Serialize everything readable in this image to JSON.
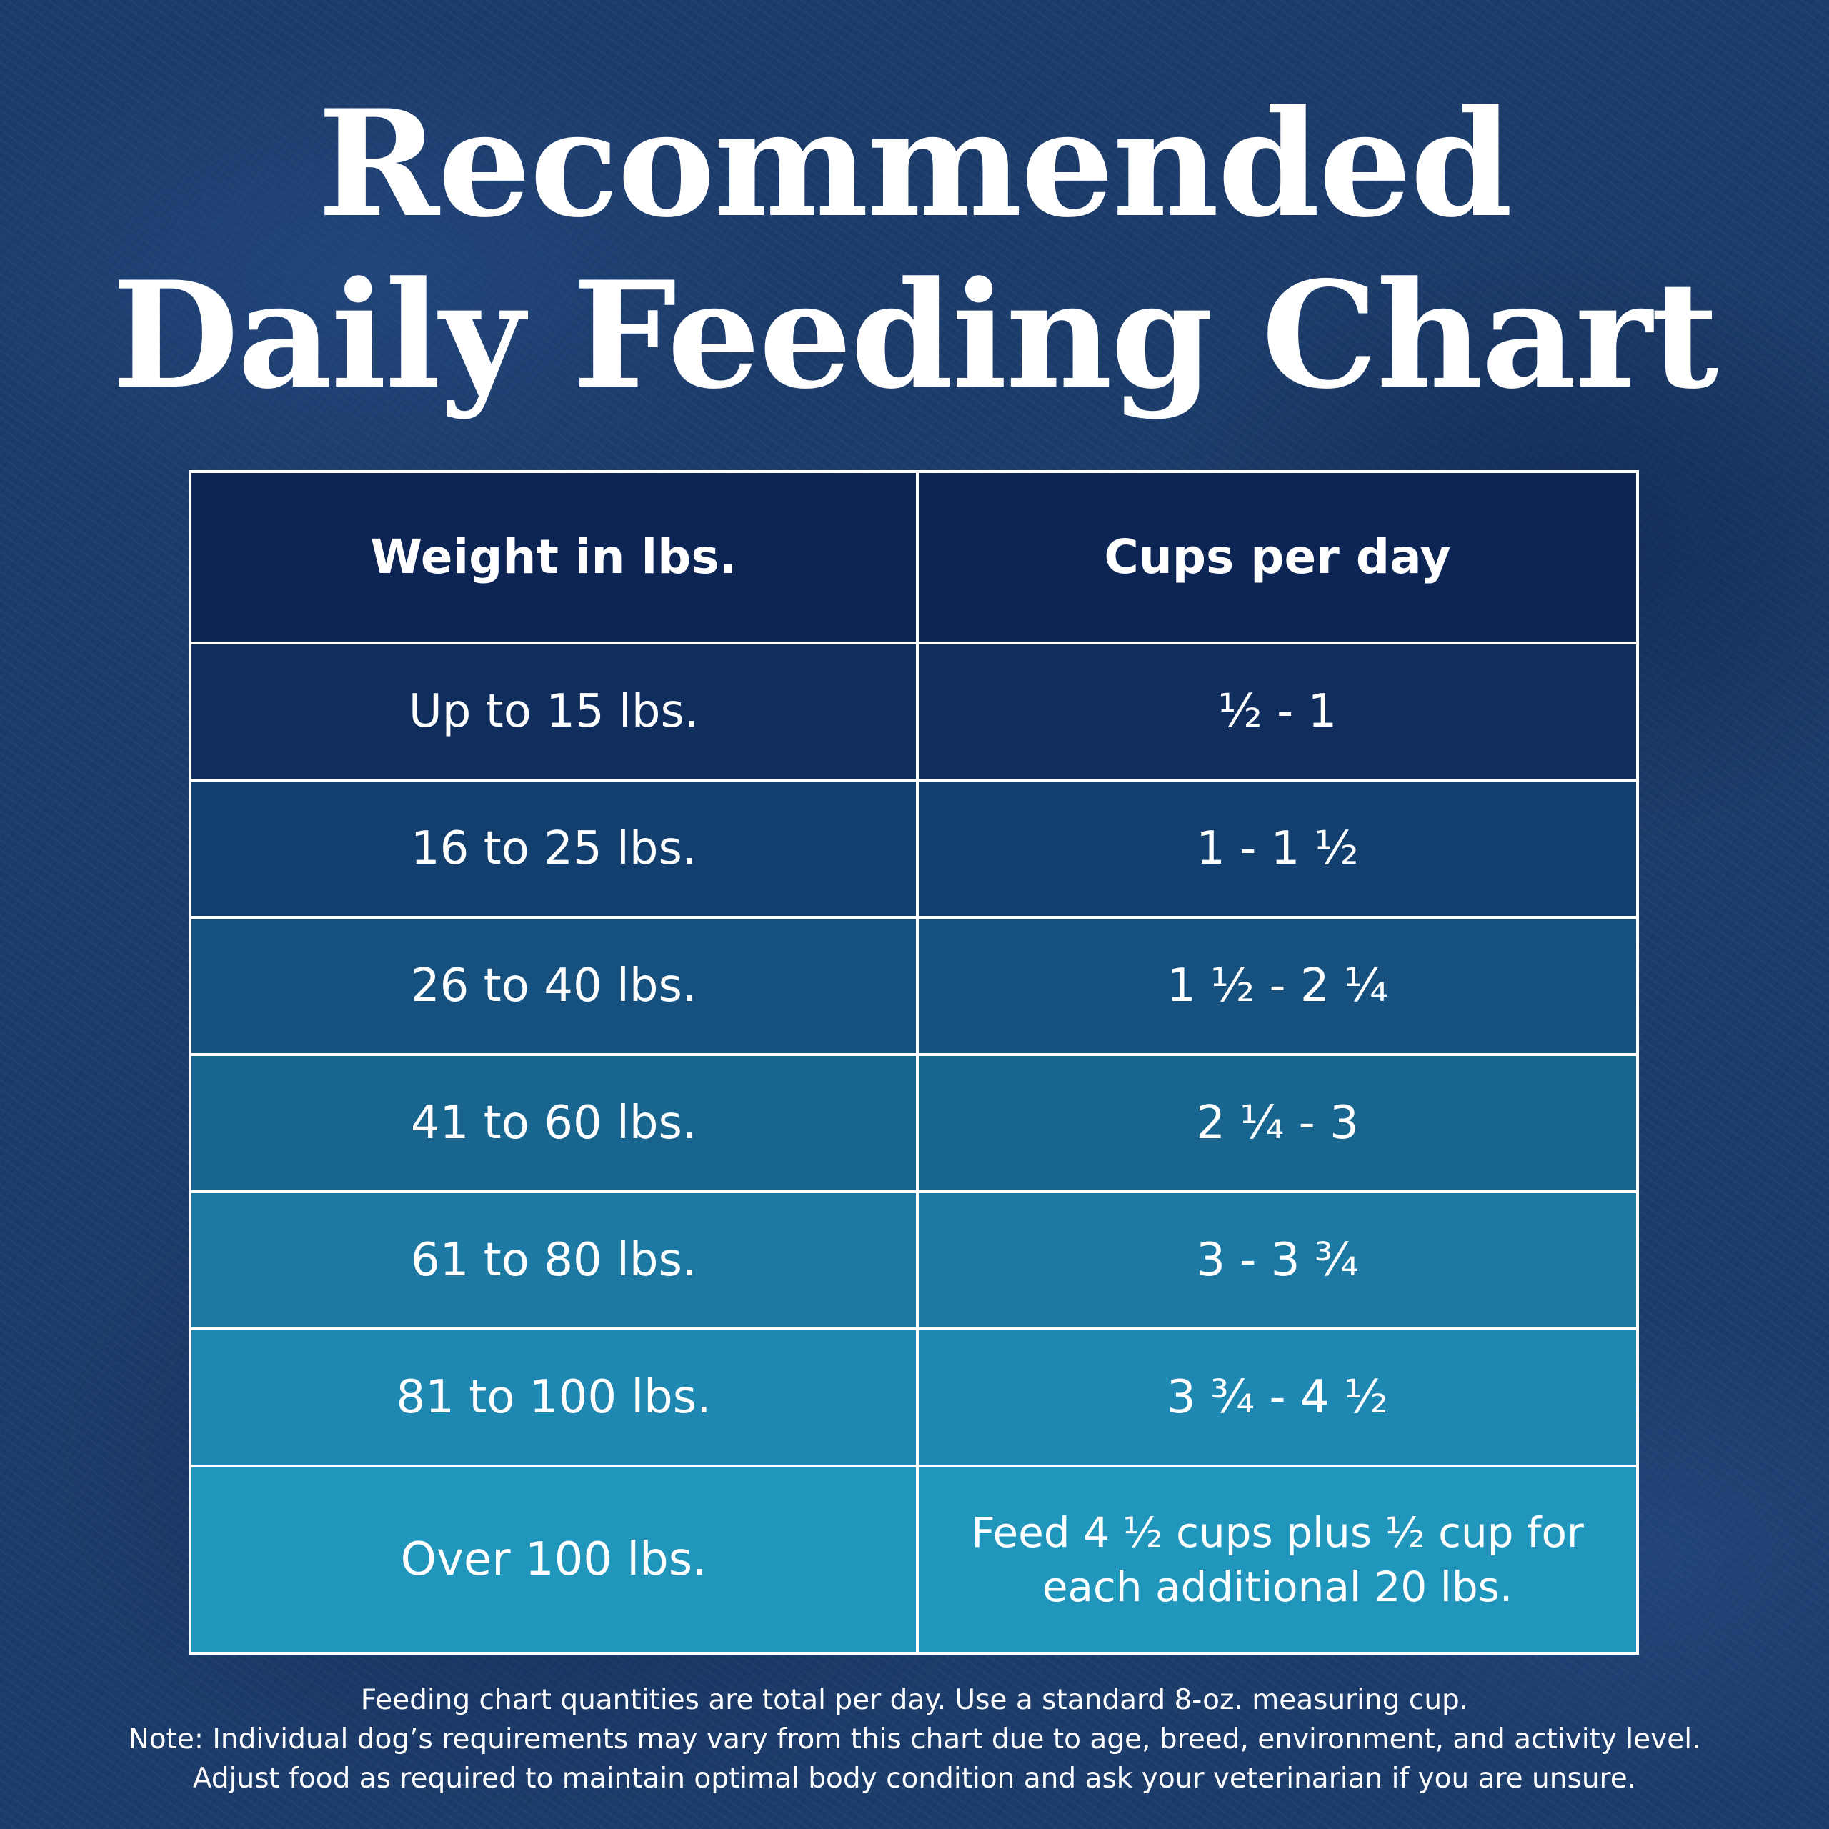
{
  "title": {
    "line1": "Recommended",
    "line2": "Daily Feeding Chart"
  },
  "table": {
    "headers": [
      "Weight in lbs.",
      "Cups per day"
    ],
    "rows": [
      {
        "weight": "Up to 15 lbs.",
        "cups": "½ - 1"
      },
      {
        "weight": "16 to 25 lbs.",
        "cups": "1 - 1 ½"
      },
      {
        "weight": "26 to 40 lbs.",
        "cups": "1 ½ - 2 ¼"
      },
      {
        "weight": "41 to 60 lbs.",
        "cups": "2 ¼ - 3"
      },
      {
        "weight": "61 to 80 lbs.",
        "cups": "3 - 3 ¾"
      },
      {
        "weight": "81 to 100 lbs.",
        "cups": "3 ¾ - 4 ½"
      },
      {
        "weight": "Over 100 lbs.",
        "cups": "Feed 4 ½ cups plus ½ cup for each additional 20 lbs."
      }
    ]
  },
  "notes": [
    "Feeding chart quantities are total per day. Use a standard 8-oz. measuring cup.",
    "Note: Individual dog’s requirements may vary from this chart due to age, breed, environment, and activity level.",
    "Adjust food as required to maintain optimal body condition and ask your veterinarian if you are unsure."
  ]
}
